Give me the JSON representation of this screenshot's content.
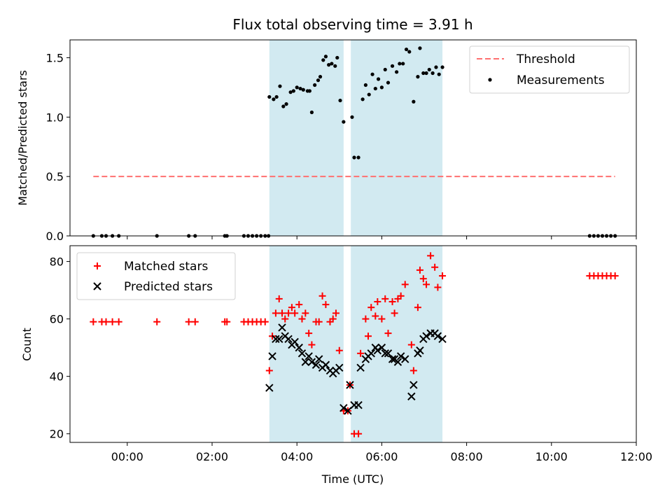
{
  "chart_data": {
    "title": "Flux total observing time = 3.91 h",
    "xlabel": "Time (UTC)",
    "x_unit": "hours (UTC)",
    "xlim": [
      -1.35,
      12.0
    ],
    "x_ticks": [
      {
        "value": 0,
        "label": "00:00"
      },
      {
        "value": 2,
        "label": "02:00"
      },
      {
        "value": 4,
        "label": "04:00"
      },
      {
        "value": 6,
        "label": "06:00"
      },
      {
        "value": 8,
        "label": "08:00"
      },
      {
        "value": 10,
        "label": "10:00"
      },
      {
        "value": 12,
        "label": "12:00"
      }
    ],
    "shaded_intervals": [
      [
        3.35,
        5.1
      ],
      [
        5.27,
        7.43
      ]
    ],
    "shade_color": "#add8e6",
    "panels": [
      {
        "type": "scatter",
        "ylabel": "Matched/Predicted stars",
        "ylim": [
          0,
          1.65
        ],
        "y_ticks": [
          {
            "value": 0,
            "label": "0.0"
          },
          {
            "value": 0.5,
            "label": "0.5"
          },
          {
            "value": 1.0,
            "label": "1.0"
          },
          {
            "value": 1.5,
            "label": "1.5"
          }
        ],
        "legend_position": "upper right",
        "threshold": {
          "name": "Threshold",
          "value": 0.5,
          "x_range": [
            -0.8,
            11.5
          ],
          "color": "#ff7070"
        },
        "series": [
          {
            "name": "Measurements",
            "color": "#000000",
            "marker": "dot",
            "points": [
              [
                -0.8,
                0
              ],
              [
                -0.6,
                0
              ],
              [
                -0.5,
                0
              ],
              [
                -0.35,
                0
              ],
              [
                -0.2,
                0
              ],
              [
                0.7,
                0
              ],
              [
                1.45,
                0
              ],
              [
                1.6,
                0
              ],
              [
                2.3,
                0
              ],
              [
                2.35,
                0
              ],
              [
                2.75,
                0
              ],
              [
                2.85,
                0
              ],
              [
                2.95,
                0
              ],
              [
                3.05,
                0
              ],
              [
                3.15,
                0
              ],
              [
                3.25,
                0
              ],
              [
                3.33,
                0
              ],
              [
                3.35,
                1.17
              ],
              [
                3.45,
                1.15
              ],
              [
                3.52,
                1.17
              ],
              [
                3.6,
                1.26
              ],
              [
                3.68,
                1.09
              ],
              [
                3.75,
                1.11
              ],
              [
                3.85,
                1.21
              ],
              [
                3.92,
                1.22
              ],
              [
                4.0,
                1.25
              ],
              [
                4.08,
                1.24
              ],
              [
                4.15,
                1.23
              ],
              [
                4.25,
                1.22
              ],
              [
                4.3,
                1.22
              ],
              [
                4.35,
                1.04
              ],
              [
                4.42,
                1.27
              ],
              [
                4.5,
                1.31
              ],
              [
                4.55,
                1.34
              ],
              [
                4.62,
                1.48
              ],
              [
                4.68,
                1.51
              ],
              [
                4.75,
                1.44
              ],
              [
                4.82,
                1.45
              ],
              [
                4.9,
                1.43
              ],
              [
                4.95,
                1.5
              ],
              [
                5.02,
                1.14
              ],
              [
                5.1,
                0.96
              ],
              [
                5.3,
                1.0
              ],
              [
                5.35,
                0.66
              ],
              [
                5.45,
                0.66
              ],
              [
                5.55,
                1.15
              ],
              [
                5.62,
                1.27
              ],
              [
                5.7,
                1.19
              ],
              [
                5.78,
                1.36
              ],
              [
                5.85,
                1.24
              ],
              [
                5.92,
                1.32
              ],
              [
                6.0,
                1.25
              ],
              [
                6.08,
                1.4
              ],
              [
                6.15,
                1.29
              ],
              [
                6.25,
                1.43
              ],
              [
                6.35,
                1.38
              ],
              [
                6.42,
                1.45
              ],
              [
                6.5,
                1.45
              ],
              [
                6.58,
                1.57
              ],
              [
                6.65,
                1.55
              ],
              [
                6.75,
                1.13
              ],
              [
                6.85,
                1.34
              ],
              [
                6.9,
                1.58
              ],
              [
                6.98,
                1.37
              ],
              [
                7.05,
                1.37
              ],
              [
                7.12,
                1.4
              ],
              [
                7.2,
                1.37
              ],
              [
                7.28,
                1.42
              ],
              [
                7.35,
                1.36
              ],
              [
                7.43,
                1.42
              ],
              [
                10.9,
                0
              ],
              [
                11.0,
                0
              ],
              [
                11.1,
                0
              ],
              [
                11.2,
                0
              ],
              [
                11.3,
                0
              ],
              [
                11.4,
                0
              ],
              [
                11.5,
                0
              ]
            ]
          }
        ]
      },
      {
        "type": "scatter",
        "ylabel": "Count",
        "ylim": [
          17,
          85.5
        ],
        "y_ticks": [
          {
            "value": 20,
            "label": "20"
          },
          {
            "value": 40,
            "label": "40"
          },
          {
            "value": 60,
            "label": "60"
          },
          {
            "value": 80,
            "label": "80"
          }
        ],
        "legend_position": "upper left",
        "series": [
          {
            "name": "Matched stars",
            "color": "#ff0000",
            "marker": "plus",
            "points": [
              [
                -0.8,
                59
              ],
              [
                -0.6,
                59
              ],
              [
                -0.5,
                59
              ],
              [
                -0.35,
                59
              ],
              [
                -0.2,
                59
              ],
              [
                0.7,
                59
              ],
              [
                1.45,
                59
              ],
              [
                1.6,
                59
              ],
              [
                2.3,
                59
              ],
              [
                2.35,
                59
              ],
              [
                2.75,
                59
              ],
              [
                2.85,
                59
              ],
              [
                2.95,
                59
              ],
              [
                3.05,
                59
              ],
              [
                3.15,
                59
              ],
              [
                3.25,
                59
              ],
              [
                3.35,
                42
              ],
              [
                3.42,
                54
              ],
              [
                3.5,
                62
              ],
              [
                3.58,
                67
              ],
              [
                3.65,
                62
              ],
              [
                3.72,
                60
              ],
              [
                3.8,
                62
              ],
              [
                3.88,
                64
              ],
              [
                3.95,
                62
              ],
              [
                4.05,
                65
              ],
              [
                4.12,
                60
              ],
              [
                4.2,
                62
              ],
              [
                4.28,
                55
              ],
              [
                4.35,
                51
              ],
              [
                4.45,
                59
              ],
              [
                4.52,
                59
              ],
              [
                4.6,
                68
              ],
              [
                4.68,
                65
              ],
              [
                4.78,
                59
              ],
              [
                4.85,
                60
              ],
              [
                4.92,
                62
              ],
              [
                5.0,
                49
              ],
              [
                5.1,
                28
              ],
              [
                5.2,
                28
              ],
              [
                5.25,
                37
              ],
              [
                5.35,
                20
              ],
              [
                5.45,
                20
              ],
              [
                5.5,
                48
              ],
              [
                5.62,
                60
              ],
              [
                5.68,
                54
              ],
              [
                5.75,
                64
              ],
              [
                5.85,
                61
              ],
              [
                5.9,
                66
              ],
              [
                6.0,
                60
              ],
              [
                6.08,
                67
              ],
              [
                6.15,
                55
              ],
              [
                6.25,
                66
              ],
              [
                6.3,
                62
              ],
              [
                6.38,
                67
              ],
              [
                6.45,
                68
              ],
              [
                6.55,
                72
              ],
              [
                6.7,
                51
              ],
              [
                6.75,
                42
              ],
              [
                6.85,
                64
              ],
              [
                6.9,
                77
              ],
              [
                6.98,
                74
              ],
              [
                7.05,
                72
              ],
              [
                7.15,
                82
              ],
              [
                7.25,
                78
              ],
              [
                7.32,
                71
              ],
              [
                7.43,
                75
              ],
              [
                10.9,
                75
              ],
              [
                11.0,
                75
              ],
              [
                11.1,
                75
              ],
              [
                11.2,
                75
              ],
              [
                11.3,
                75
              ],
              [
                11.4,
                75
              ],
              [
                11.5,
                75
              ]
            ]
          },
          {
            "name": "Predicted stars",
            "color": "#000000",
            "marker": "x",
            "points": [
              [
                3.35,
                36
              ],
              [
                3.42,
                47
              ],
              [
                3.5,
                53
              ],
              [
                3.58,
                53
              ],
              [
                3.65,
                57
              ],
              [
                3.72,
                54
              ],
              [
                3.8,
                53
              ],
              [
                3.88,
                51
              ],
              [
                3.95,
                52
              ],
              [
                4.05,
                50
              ],
              [
                4.12,
                48
              ],
              [
                4.2,
                45
              ],
              [
                4.28,
                47
              ],
              [
                4.35,
                45
              ],
              [
                4.45,
                44
              ],
              [
                4.52,
                46
              ],
              [
                4.6,
                43
              ],
              [
                4.68,
                44
              ],
              [
                4.78,
                42
              ],
              [
                4.85,
                41
              ],
              [
                4.92,
                42
              ],
              [
                5.0,
                43
              ],
              [
                5.1,
                29
              ],
              [
                5.2,
                28
              ],
              [
                5.25,
                37
              ],
              [
                5.35,
                30
              ],
              [
                5.45,
                30
              ],
              [
                5.5,
                43
              ],
              [
                5.62,
                46
              ],
              [
                5.68,
                47
              ],
              [
                5.75,
                48
              ],
              [
                5.85,
                50
              ],
              [
                5.9,
                49
              ],
              [
                6.0,
                50
              ],
              [
                6.08,
                48
              ],
              [
                6.15,
                48
              ],
              [
                6.25,
                46
              ],
              [
                6.3,
                46
              ],
              [
                6.38,
                45
              ],
              [
                6.45,
                47
              ],
              [
                6.55,
                46
              ],
              [
                6.7,
                33
              ],
              [
                6.75,
                37
              ],
              [
                6.85,
                48
              ],
              [
                6.9,
                49
              ],
              [
                6.98,
                53
              ],
              [
                7.05,
                54
              ],
              [
                7.15,
                55
              ],
              [
                7.25,
                55
              ],
              [
                7.32,
                54
              ],
              [
                7.43,
                53
              ]
            ]
          }
        ]
      }
    ]
  }
}
